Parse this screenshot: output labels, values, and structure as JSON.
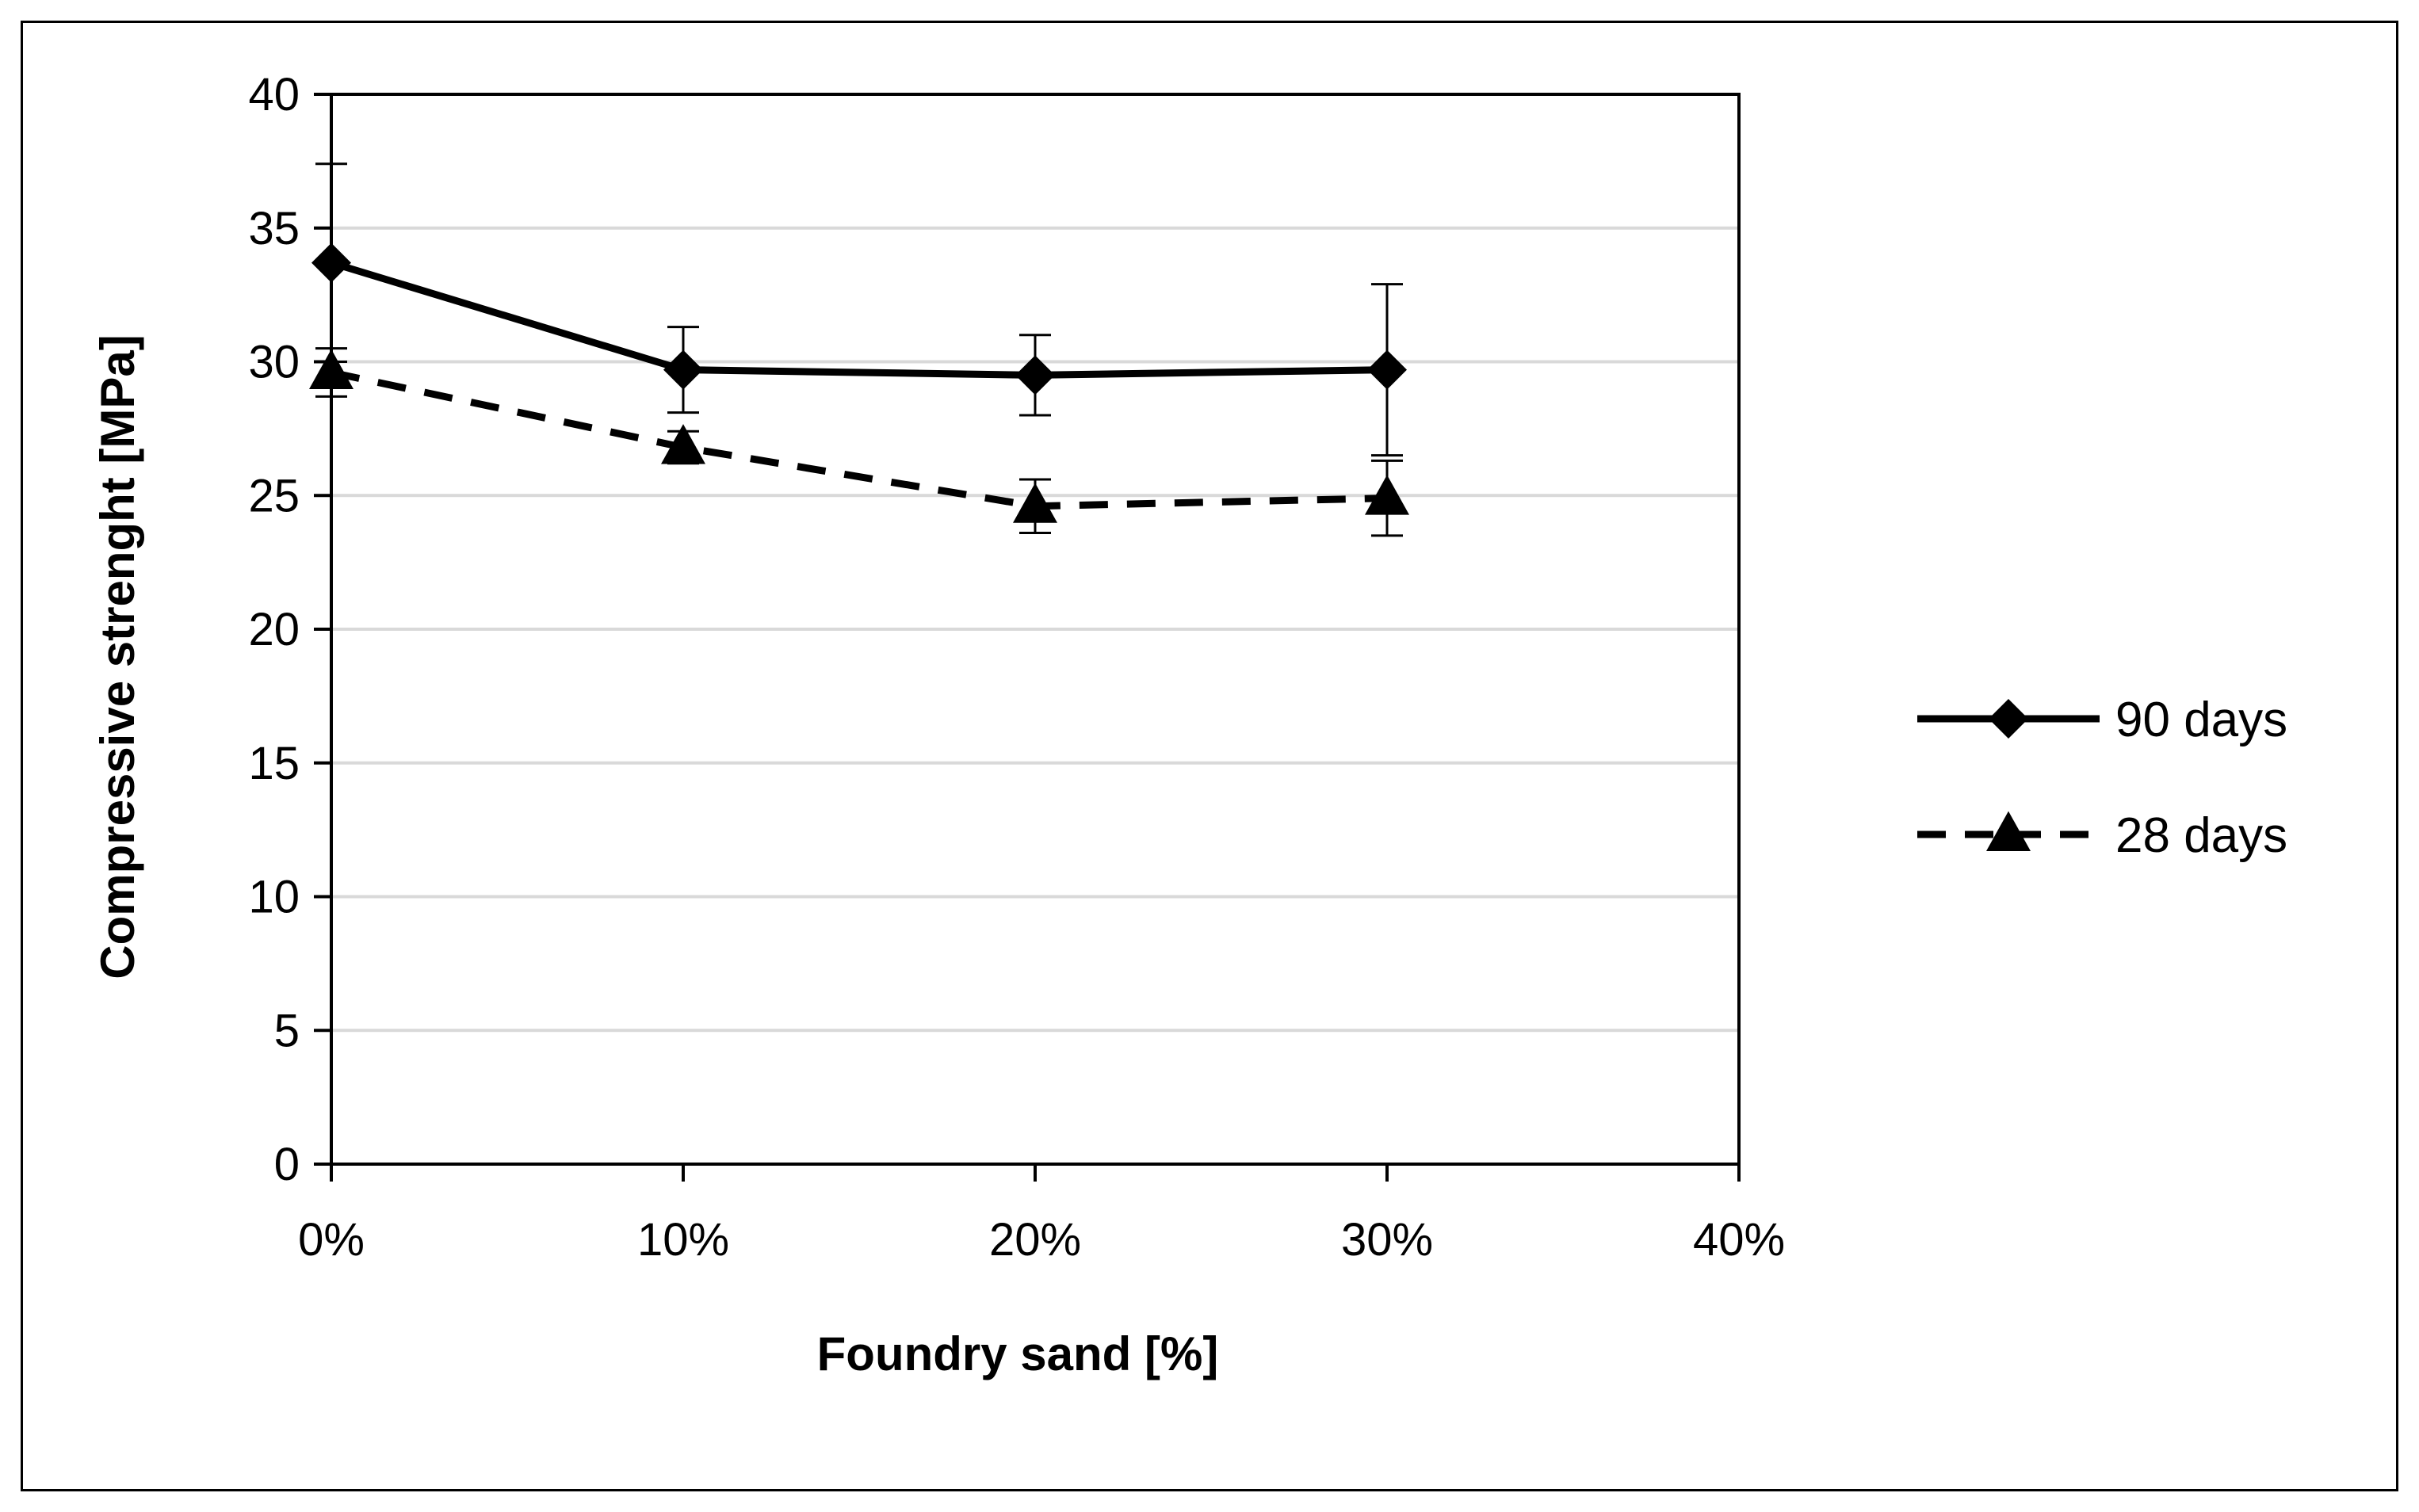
{
  "chart_data": {
    "type": "line",
    "title": "",
    "xlabel": "Foundry sand [%]",
    "ylabel": "Compressive strenght [MPa]",
    "x": [
      0,
      10,
      20,
      30
    ],
    "xlim": [
      0,
      40
    ],
    "ylim": [
      0,
      40
    ],
    "x_ticks": [
      0,
      10,
      20,
      30,
      40
    ],
    "x_tick_labels": [
      "0%",
      "10%",
      "20%",
      "30%",
      "40%"
    ],
    "y_ticks": [
      0,
      5,
      10,
      15,
      20,
      25,
      30,
      35,
      40
    ],
    "y_tick_labels": [
      "0",
      "5",
      "10",
      "15",
      "20",
      "25",
      "30",
      "35",
      "40"
    ],
    "grid": "horizontal",
    "legend_position": "right",
    "series": [
      {
        "name": "90 days",
        "marker": "diamond",
        "line_style": "solid",
        "color": "#000000",
        "values": [
          33.7,
          29.7,
          29.5,
          29.7
        ],
        "error": [
          3.7,
          1.6,
          1.5,
          3.2
        ]
      },
      {
        "name": "28 days",
        "marker": "triangle",
        "line_style": "dashed",
        "color": "#000000",
        "values": [
          29.6,
          26.8,
          24.6,
          24.9
        ],
        "error": [
          0.9,
          0.6,
          1.0,
          1.4
        ]
      }
    ]
  }
}
